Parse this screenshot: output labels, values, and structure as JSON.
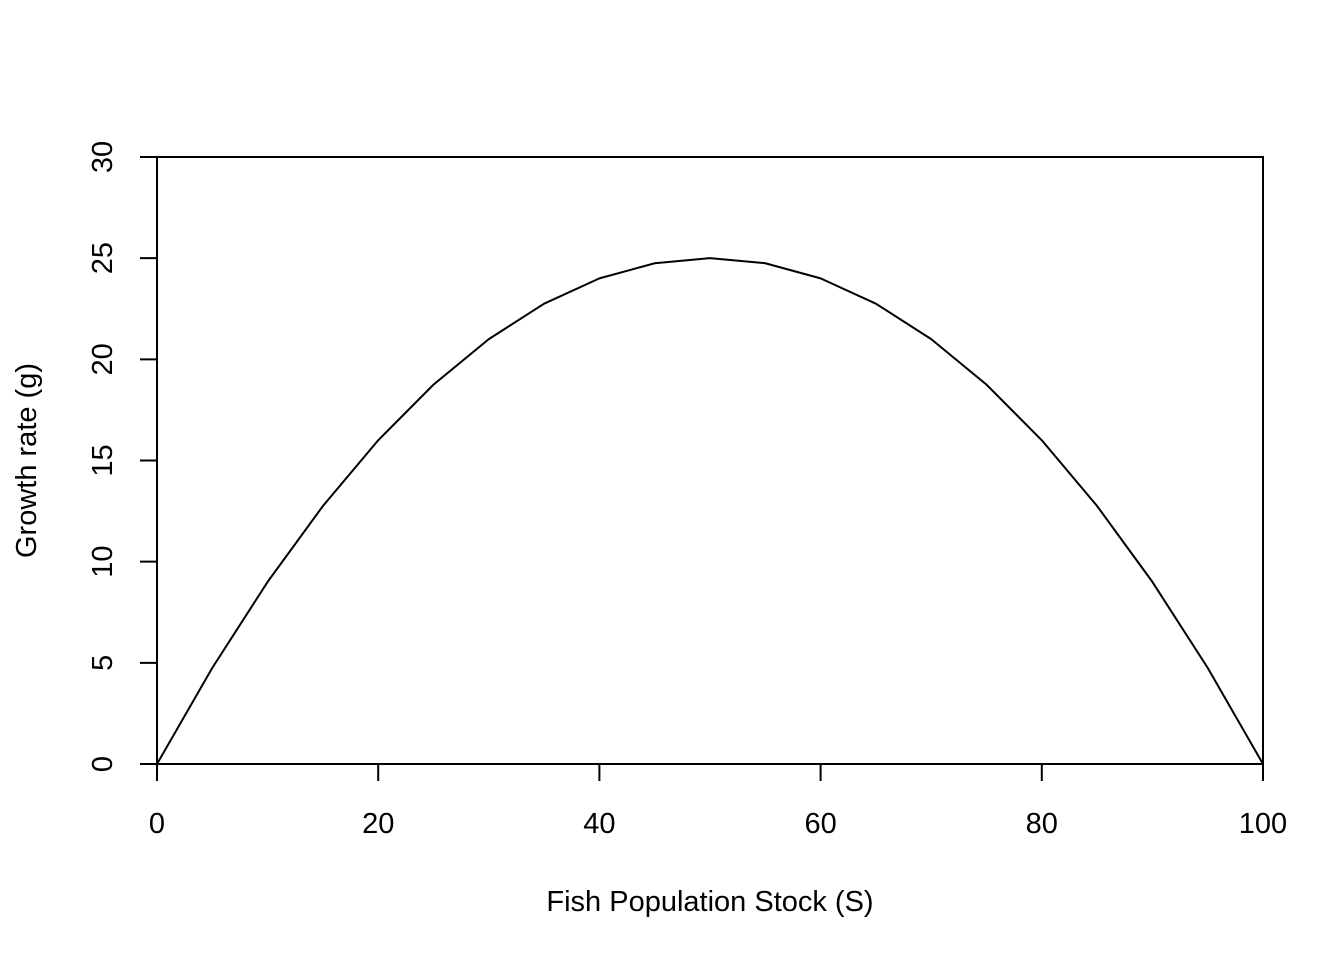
{
  "chart_data": {
    "type": "line",
    "title": "",
    "xlabel": "Fish Population Stock (S)",
    "ylabel": "Growth rate (g)",
    "xlim": [
      0,
      100
    ],
    "ylim": [
      0,
      30
    ],
    "x_ticks": [
      "0",
      "20",
      "40",
      "60",
      "80",
      "100"
    ],
    "y_ticks": [
      "0",
      "5",
      "10",
      "15",
      "20",
      "25",
      "30"
    ],
    "grid": false,
    "legend": "none",
    "series": [
      {
        "x": [
          0,
          5,
          10,
          15,
          20,
          25,
          30,
          35,
          40,
          45,
          50,
          55,
          60,
          65,
          70,
          75,
          80,
          85,
          90,
          95,
          100
        ],
        "y": [
          0,
          4.75,
          9,
          12.75,
          16,
          18.75,
          21,
          22.75,
          24,
          24.75,
          25,
          24.75,
          24,
          22.75,
          21,
          18.75,
          16,
          12.75,
          9,
          4.75,
          0
        ]
      }
    ],
    "colors": {
      "line": "#000000",
      "axis": "#000000",
      "background": "#ffffff"
    }
  }
}
